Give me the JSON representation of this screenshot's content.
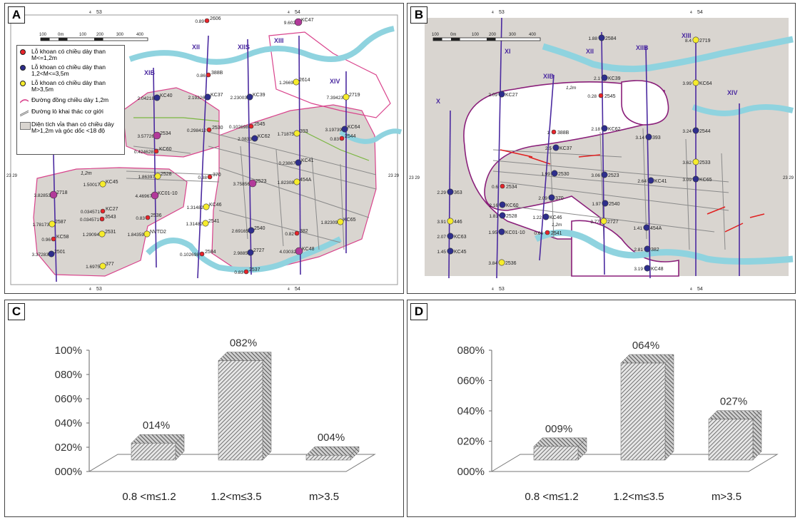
{
  "panels": {
    "a": {
      "label": "A"
    },
    "b": {
      "label": "B"
    },
    "c": {
      "label": "C"
    },
    "d": {
      "label": "D"
    }
  },
  "map_common": {
    "grid_top_left": "53",
    "grid_top_right": "54",
    "grid_prefix": "4",
    "grid_side_left": "23 29",
    "grid_side_right": "23 29",
    "scale_labels": [
      "100",
      "0m",
      "100",
      "200",
      "300",
      "400"
    ]
  },
  "colors": {
    "red": "#e8242a",
    "blue": "#2e2e8c",
    "yellow": "#f6ec2c",
    "magenta": "#b23a9a",
    "contour": "#d9438c",
    "river": "#8fd3df",
    "area": "#d9d5d0",
    "line": "#4b2aa0"
  },
  "legend": {
    "items": [
      {
        "sym": "red",
        "text": "Lỗ khoan có chiều dày than M<=1,2m"
      },
      {
        "sym": "blue",
        "text": "Lỗ khoan có chiều dày than 1,2<M<=3,5m"
      },
      {
        "sym": "yellow",
        "text": "Lỗ khoan có chiều dày than M>3,5m"
      },
      {
        "sym": "contour",
        "text": "Đường đồng chiều dày 1,2m"
      },
      {
        "sym": "double-line",
        "text": "Đường lò khai thác cơ giới"
      },
      {
        "sym": "area",
        "text": "Diện tích vỉa than có chiều dày M>1,2m và góc dốc <18 độ"
      }
    ]
  },
  "map_a": {
    "section_lines": [
      {
        "name": "XII",
        "x": 0
      },
      {
        "name": "XIIS",
        "x": 0
      },
      {
        "name": "XIII",
        "x": 0
      },
      {
        "name": "XIV",
        "x": 0
      },
      {
        "name": "XIB",
        "x": 0
      }
    ],
    "contour_label": "1,2m",
    "boreholes": [
      {
        "label": "2606",
        "value": "0.89",
        "color": "red"
      },
      {
        "label": "KC47",
        "value": "9.602",
        "color": "magenta"
      },
      {
        "label": "388B",
        "value": "0.86",
        "color": "red"
      },
      {
        "label": "2614",
        "value": "1.2669",
        "color": "yellow"
      },
      {
        "label": "2719",
        "value": "7.39423",
        "color": "yellow"
      },
      {
        "label": "KC40",
        "value": "2.04218",
        "color": "blue"
      },
      {
        "label": "KC37",
        "value": "2.19326",
        "color": "blue"
      },
      {
        "label": "KC39",
        "value": "2.23003",
        "color": "blue"
      },
      {
        "label": "2530",
        "value": "0.298412",
        "color": "red"
      },
      {
        "label": "2545",
        "value": "0.102698",
        "color": "red"
      },
      {
        "label": "KC64",
        "value": "3.19739",
        "color": "blue"
      },
      {
        "label": "2534",
        "value": "3.57726",
        "color": "magenta"
      },
      {
        "label": "KC62",
        "value": "2.0833",
        "color": "blue"
      },
      {
        "label": "393",
        "value": "1.71875",
        "color": "yellow"
      },
      {
        "label": "2544",
        "value": "0.83",
        "color": "red"
      },
      {
        "label": "KC60",
        "value": "0.424628",
        "color": "red"
      },
      {
        "label": "KC41",
        "value": "0.23867",
        "color": "blue"
      },
      {
        "label": "2528",
        "value": "1.86397",
        "color": "yellow"
      },
      {
        "label": "370",
        "value": "0.38",
        "color": "red"
      },
      {
        "label": "2523",
        "value": "3.75856",
        "color": "magenta"
      },
      {
        "label": "454A",
        "value": "1.82308",
        "color": "yellow"
      },
      {
        "label": "KC45",
        "value": "1.50017",
        "color": "yellow"
      },
      {
        "label": "2718",
        "value": "3.82853",
        "color": "magenta"
      },
      {
        "label": "KC01-10",
        "value": "4.46967",
        "color": "magenta"
      },
      {
        "label": "KC46",
        "value": "1.31482",
        "color": "yellow"
      },
      {
        "label": "KC27",
        "value": "0.034571",
        "color": "red"
      },
      {
        "label": "3543",
        "value": "0.034571",
        "color": "red"
      },
      {
        "label": "2536",
        "value": "0.83",
        "color": "red"
      },
      {
        "label": "2541",
        "value": "1.31482",
        "color": "yellow"
      },
      {
        "label": "KC65",
        "value": "1.82309",
        "color": "yellow"
      },
      {
        "label": "2587",
        "value": "1.78173",
        "color": "yellow"
      },
      {
        "label": "2531",
        "value": "1.29094",
        "color": "yellow"
      },
      {
        "label": "NVTD2",
        "value": "1.84359",
        "color": "yellow"
      },
      {
        "label": "2540",
        "value": "2.69165",
        "color": "blue"
      },
      {
        "label": "382",
        "value": "0.82",
        "color": "red"
      },
      {
        "label": "KC58",
        "value": "0.96",
        "color": "red"
      },
      {
        "label": "2501",
        "value": "3.37283",
        "color": "blue"
      },
      {
        "label": "2584",
        "value": "0.102698",
        "color": "red"
      },
      {
        "label": "2727",
        "value": "2.9885",
        "color": "blue"
      },
      {
        "label": "KC48",
        "value": "4.03032",
        "color": "magenta"
      },
      {
        "label": "377",
        "value": "1.6975",
        "color": "yellow"
      },
      {
        "label": "2537",
        "value": "0.83",
        "color": "red"
      }
    ]
  },
  "map_b": {
    "section_labels": [
      "X",
      "XI",
      "XIB",
      "XII",
      "XIIB",
      "XIII",
      "XIV"
    ],
    "contour_label": "1,2m",
    "boreholes": [
      {
        "label": "2584",
        "value": "1.88",
        "color": "blue"
      },
      {
        "label": "2719",
        "value": "8.4",
        "color": "yellow"
      },
      {
        "label": "KC39",
        "value": "2.1",
        "color": "blue"
      },
      {
        "label": "KC27",
        "value": "2.09",
        "color": "blue"
      },
      {
        "label": "2545",
        "value": "0.28",
        "color": "red"
      },
      {
        "label": "KC64",
        "value": "3.99",
        "color": "yellow"
      },
      {
        "label": "KC62",
        "value": "2.18",
        "color": "blue"
      },
      {
        "label": "388B",
        "value": "1",
        "color": "red"
      },
      {
        "label": "393",
        "value": "3.14",
        "color": "blue"
      },
      {
        "label": "2544",
        "value": "3.24",
        "color": "blue"
      },
      {
        "label": "KC37",
        "value": "2.5",
        "color": "blue"
      },
      {
        "label": "2533",
        "value": "3.62",
        "color": "yellow"
      },
      {
        "label": "2530",
        "value": "1.99",
        "color": "blue"
      },
      {
        "label": "2523",
        "value": "3.06",
        "color": "blue"
      },
      {
        "label": "KC41",
        "value": "2.64",
        "color": "blue"
      },
      {
        "label": "KC65",
        "value": "3.09",
        "color": "blue"
      },
      {
        "label": "2534",
        "value": "0.6",
        "color": "red"
      },
      {
        "label": "363",
        "value": "2.29",
        "color": "blue"
      },
      {
        "label": "370",
        "value": "2.09",
        "color": "blue"
      },
      {
        "label": "2540",
        "value": "1.97",
        "color": "blue"
      },
      {
        "label": "KC60",
        "value": "2.16",
        "color": "blue"
      },
      {
        "label": "2528",
        "value": "1.81",
        "color": "blue"
      },
      {
        "label": "446",
        "value": "3.91",
        "color": "yellow"
      },
      {
        "label": "KC46",
        "value": "1.22",
        "color": "blue"
      },
      {
        "label": "2727",
        "value": "3.77",
        "color": "yellow"
      },
      {
        "label": "454A",
        "value": "1.41",
        "color": "blue"
      },
      {
        "label": "KC01-10",
        "value": "1.95",
        "color": "blue"
      },
      {
        "label": "2541",
        "value": "0.64",
        "color": "red"
      },
      {
        "label": "KC63",
        "value": "2.07",
        "color": "blue"
      },
      {
        "label": "382",
        "value": "2.81",
        "color": "blue"
      },
      {
        "label": "KC45",
        "value": "1.45",
        "color": "blue"
      },
      {
        "label": "2536",
        "value": "3.84",
        "color": "yellow"
      },
      {
        "label": "KC48",
        "value": "3.19",
        "color": "blue"
      }
    ]
  },
  "chart_data": [
    {
      "type": "bar",
      "panel": "C",
      "categories": [
        "0.8 <m≤1.2",
        "1.2<m≤3.5",
        "m>3.5"
      ],
      "values": [
        0.14,
        0.82,
        0.04
      ],
      "value_labels": [
        "014%",
        "082%",
        "004%"
      ],
      "yticks": [
        "000%",
        "020%",
        "040%",
        "060%",
        "080%",
        "100%"
      ],
      "ylim": [
        0,
        1.0
      ],
      "style": "3d-hatched"
    },
    {
      "type": "bar",
      "panel": "D",
      "categories": [
        "0.8 <m≤1.2",
        "1.2<m≤3.5",
        "m>3.5"
      ],
      "values": [
        0.09,
        0.64,
        0.27
      ],
      "value_labels": [
        "009%",
        "064%",
        "027%"
      ],
      "yticks": [
        "000%",
        "020%",
        "040%",
        "060%",
        "080%"
      ],
      "ylim": [
        0,
        0.8
      ],
      "style": "3d-hatched"
    }
  ]
}
